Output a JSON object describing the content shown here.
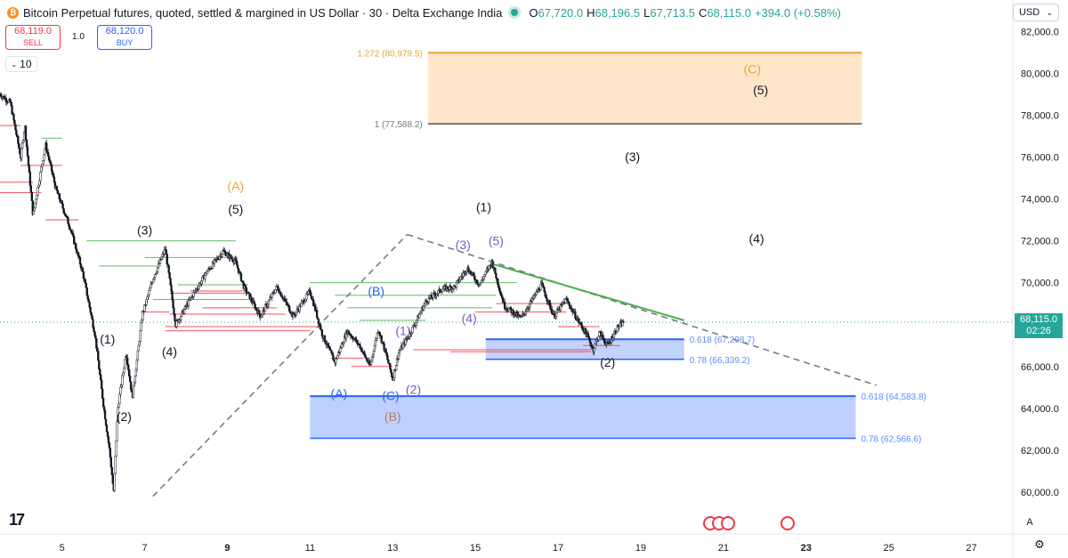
{
  "header": {
    "symbol_icon": "bitcoin-icon",
    "title": "Bitcoin Perpetual futures, quoted, settled & margined in US Dollar · 30 · Delta Exchange India",
    "ohlc": {
      "o_label": "O",
      "o": "67,720.0",
      "h_label": "H",
      "h": "68,196.5",
      "l_label": "L",
      "l": "67,713.5",
      "c_label": "C",
      "c": "68,115.0"
    },
    "change": "+394.0 (+0.58%)"
  },
  "trade": {
    "sell_price": "68,119.0",
    "sell_label": "SELL",
    "spread": "1.0",
    "buy_price": "68,120.0",
    "buy_label": "BUY"
  },
  "interval_value": "10",
  "currency": "USD",
  "current_price": {
    "value": "68,115.0",
    "countdown": "02:26"
  },
  "bottom": {
    "auto_label": "A"
  },
  "colors": {
    "up": "#26a69a",
    "down": "#f23645",
    "fib_orange": "#e8a33a",
    "fib_blue": "#2962ff",
    "purple": "#7e57c2"
  },
  "chart_data": {
    "type": "candlestick",
    "ylim": [
      58000,
      83500
    ],
    "xlim": [
      3.5,
      28
    ],
    "y_ticks": [
      60000,
      62000,
      64000,
      66000,
      68000,
      70000,
      72000,
      74000,
      76000,
      78000,
      80000,
      82000
    ],
    "y_tick_labels": [
      "60,000.0",
      "62,000.0",
      "64,000.0",
      "66,000.0",
      "68,000.0",
      "70,000.0",
      "72,000.0",
      "74,000.0",
      "76,000.0",
      "78,000.0",
      "80,000.0",
      "82,000.0"
    ],
    "x_ticks": [
      5,
      7,
      9,
      11,
      13,
      15,
      17,
      19,
      21,
      23,
      25,
      27
    ],
    "x_tick_labels": [
      "5",
      "7",
      "9",
      "11",
      "13",
      "15",
      "17",
      "19",
      "21",
      "23",
      "25",
      "27"
    ],
    "bold_x_ticks": [
      "9",
      "23"
    ],
    "last_price": 68115,
    "price_path": [
      [
        3.5,
        79000
      ],
      [
        3.75,
        78600
      ],
      [
        4.0,
        76000
      ],
      [
        4.1,
        77500
      ],
      [
        4.3,
        73200
      ],
      [
        4.6,
        76600
      ],
      [
        4.85,
        74500
      ],
      [
        5.2,
        72600
      ],
      [
        5.5,
        70500
      ],
      [
        5.8,
        67500
      ],
      [
        6.0,
        64200
      ],
      [
        6.15,
        62000
      ],
      [
        6.25,
        60000
      ],
      [
        6.35,
        64000
      ],
      [
        6.55,
        66700
      ],
      [
        6.7,
        64500
      ],
      [
        6.95,
        68500
      ],
      [
        7.2,
        70200
      ],
      [
        7.5,
        71600
      ],
      [
        7.75,
        68000
      ],
      [
        8.1,
        69200
      ],
      [
        8.5,
        70500
      ],
      [
        8.9,
        71500
      ],
      [
        9.2,
        71000
      ],
      [
        9.4,
        69800
      ],
      [
        9.8,
        68400
      ],
      [
        10.2,
        69800
      ],
      [
        10.6,
        68400
      ],
      [
        11.0,
        69600
      ],
      [
        11.3,
        67500
      ],
      [
        11.6,
        66200
      ],
      [
        11.9,
        67700
      ],
      [
        12.2,
        67000
      ],
      [
        12.45,
        66000
      ],
      [
        12.65,
        67800
      ],
      [
        12.85,
        66500
      ],
      [
        13.0,
        65400
      ],
      [
        13.15,
        66700
      ],
      [
        13.4,
        67500
      ],
      [
        13.8,
        69100
      ],
      [
        14.2,
        69700
      ],
      [
        14.5,
        69800
      ],
      [
        14.8,
        70700
      ],
      [
        15.1,
        69900
      ],
      [
        15.4,
        71000
      ],
      [
        15.7,
        68900
      ],
      [
        16.1,
        68300
      ],
      [
        16.6,
        69900
      ],
      [
        16.9,
        68400
      ],
      [
        17.2,
        69200
      ],
      [
        17.45,
        68300
      ],
      [
        17.7,
        67500
      ],
      [
        17.85,
        66800
      ],
      [
        18.0,
        67600
      ],
      [
        18.2,
        67000
      ],
      [
        18.45,
        67900
      ],
      [
        18.6,
        68115
      ]
    ],
    "annotations": [
      {
        "label": "(A)",
        "x": 9.2,
        "y": 74400,
        "color": "#e8a33a"
      },
      {
        "label": "(5)",
        "x": 9.2,
        "y": 73300,
        "color": "#131722"
      },
      {
        "label": "(3)",
        "x": 7.0,
        "y": 72300,
        "color": "#131722"
      },
      {
        "label": "(4)",
        "x": 7.6,
        "y": 66500,
        "color": "#131722"
      },
      {
        "label": "(1)",
        "x": 6.1,
        "y": 67100,
        "color": "#131722"
      },
      {
        "label": "(2)",
        "x": 6.5,
        "y": 63400,
        "color": "#131722"
      },
      {
        "label": "(1)",
        "x": 15.2,
        "y": 73400,
        "color": "#131722"
      },
      {
        "label": "(3)",
        "x": 18.8,
        "y": 75800,
        "color": "#131722"
      },
      {
        "label": "(4)",
        "x": 21.8,
        "y": 71900,
        "color": "#131722"
      },
      {
        "label": "(C)",
        "x": 21.7,
        "y": 80000,
        "color": "#e8a33a"
      },
      {
        "label": "(5)",
        "x": 21.9,
        "y": 79000,
        "color": "#131722"
      },
      {
        "label": "(2)",
        "x": 18.2,
        "y": 66000,
        "color": "#131722"
      },
      {
        "label": "(B)",
        "x": 12.6,
        "y": 69400,
        "color": "#2962ff"
      },
      {
        "label": "(A)",
        "x": 11.7,
        "y": 64500,
        "color": "#2962ff"
      },
      {
        "label": "(C)",
        "x": 12.95,
        "y": 64400,
        "color": "#2962ff"
      },
      {
        "label": "(B)",
        "x": 13.0,
        "y": 63400,
        "color": "#c0785a"
      },
      {
        "label": "(2)",
        "x": 13.5,
        "y": 64700,
        "color": "#7e57c2"
      },
      {
        "label": "(1)",
        "x": 13.25,
        "y": 67500,
        "color": "#7e57c2"
      },
      {
        "label": "(4)",
        "x": 14.85,
        "y": 68100,
        "color": "#7e57c2"
      },
      {
        "label": "(3)",
        "x": 14.7,
        "y": 71600,
        "color": "#7e57c2"
      },
      {
        "label": "(5)",
        "x": 15.5,
        "y": 71800,
        "color": "#7e57c2"
      }
    ],
    "fib_zones": [
      {
        "name": "orange",
        "top": 80979.5,
        "bottom": 77588.2,
        "x_start": 13.85,
        "x_end": 24.35,
        "fill": "rgba(255,184,102,0.35)",
        "top_line": "#e8a33a",
        "bottom_line": "#555555",
        "label_top": "1.272 (80,979.5)",
        "label_bottom": "1 (77,588.2)",
        "label_top_color": "#e8a33a",
        "label_bottom_color": "#787b86",
        "label_side": "left"
      },
      {
        "name": "blue-small",
        "top": 67298.7,
        "bottom": 66339.2,
        "x_start": 15.25,
        "x_end": 20.05,
        "fill": "rgba(41,98,255,0.28)",
        "top_line": "#2962ff",
        "bottom_line": "#2962ff",
        "label_top": "0.618 (67,298.7)",
        "label_bottom": "0.78 (66,339.2)",
        "label_top_color": "#5b8cff",
        "label_bottom_color": "#5b8cff",
        "label_side": "right"
      },
      {
        "name": "blue-large",
        "top": 64583.8,
        "bottom": 62566.6,
        "x_start": 11.0,
        "x_end": 24.2,
        "fill": "rgba(41,98,255,0.30)",
        "top_line": "#2962ff",
        "bottom_line": "#2962ff",
        "label_top": "0.618 (64,583.8)",
        "label_bottom": "0.78 (62,566.6)",
        "label_top_color": "#5b8cff",
        "label_bottom_color": "#5b8cff",
        "label_side": "right"
      }
    ],
    "trendlines": [
      {
        "points": [
          [
            7.2,
            59800
          ],
          [
            13.35,
            72300
          ]
        ],
        "color": "#787b86",
        "dash": "7,5",
        "width": 1.6
      },
      {
        "points": [
          [
            13.35,
            72300
          ],
          [
            24.7,
            65100
          ]
        ],
        "color": "#787b86",
        "dash": "7,5",
        "width": 1.6
      },
      {
        "points": [
          [
            15.4,
            70900
          ],
          [
            20.05,
            68200
          ]
        ],
        "color": "#4caf50",
        "dash": "",
        "width": 2
      }
    ],
    "levels": [
      {
        "y": 72000,
        "x_start": 5.6,
        "x_end": 9.2,
        "color": "#4caf50"
      },
      {
        "y": 71200,
        "x_start": 7.0,
        "x_end": 9.2,
        "color": "#4caf50"
      },
      {
        "y": 70800,
        "x_start": 5.9,
        "x_end": 7.4,
        "color": "#4caf50"
      },
      {
        "y": 69900,
        "x_start": 7.8,
        "x_end": 9.5,
        "color": "#4caf50"
      },
      {
        "y": 69600,
        "x_start": 8.1,
        "x_end": 9.5,
        "color": "#f23645"
      },
      {
        "y": 69200,
        "x_start": 7.2,
        "x_end": 9.5,
        "color": "#4caf50"
      },
      {
        "y": 68800,
        "x_start": 8.4,
        "x_end": 10.2,
        "color": "#f23645"
      },
      {
        "y": 68500,
        "x_start": 7.6,
        "x_end": 10.4,
        "color": "#f23645"
      },
      {
        "y": 67900,
        "x_start": 7.5,
        "x_end": 11.3,
        "color": "#f23645"
      },
      {
        "y": 67700,
        "x_start": 7.5,
        "x_end": 11.0,
        "color": "#f23645"
      },
      {
        "y": 70000,
        "x_start": 11.0,
        "x_end": 16.0,
        "color": "#4caf50"
      },
      {
        "y": 69400,
        "x_start": 11.6,
        "x_end": 15.5,
        "color": "#4caf50"
      },
      {
        "y": 68800,
        "x_start": 11.9,
        "x_end": 15.4,
        "color": "#4caf50"
      },
      {
        "y": 68200,
        "x_start": 12.2,
        "x_end": 13.8,
        "color": "#4caf50"
      },
      {
        "y": 68600,
        "x_start": 15.0,
        "x_end": 17.2,
        "color": "#f23645"
      },
      {
        "y": 69000,
        "x_start": 15.5,
        "x_end": 17.2,
        "color": "#f23645"
      },
      {
        "y": 66400,
        "x_start": 11.5,
        "x_end": 12.3,
        "color": "#f23645"
      },
      {
        "y": 66000,
        "x_start": 12.0,
        "x_end": 13.0,
        "color": "#f23645"
      },
      {
        "y": 66800,
        "x_start": 13.5,
        "x_end": 17.8,
        "color": "#f23645"
      },
      {
        "y": 66700,
        "x_start": 14.4,
        "x_end": 17.8,
        "color": "#f23645"
      },
      {
        "y": 67900,
        "x_start": 17.0,
        "x_end": 18.0,
        "color": "#f23645"
      },
      {
        "y": 67000,
        "x_start": 17.6,
        "x_end": 18.5,
        "color": "#f23645"
      },
      {
        "y": 77500,
        "x_start": 3.5,
        "x_end": 4.0,
        "color": "#f23645"
      },
      {
        "y": 74800,
        "x_start": 3.5,
        "x_end": 4.3,
        "color": "#f23645"
      },
      {
        "y": 74300,
        "x_start": 3.5,
        "x_end": 4.5,
        "color": "#f23645"
      },
      {
        "y": 75600,
        "x_start": 4.0,
        "x_end": 5.0,
        "color": "#f23645"
      },
      {
        "y": 76900,
        "x_start": 4.5,
        "x_end": 5.0,
        "color": "#4caf50"
      },
      {
        "y": 73000,
        "x_start": 4.6,
        "x_end": 5.4,
        "color": "#f23645"
      },
      {
        "y": 68600,
        "x_start": 6.9,
        "x_end": 7.6,
        "color": "#f23645"
      },
      {
        "y": 69500,
        "x_start": 7.6,
        "x_end": 9.5,
        "color": "#f23645"
      }
    ]
  }
}
